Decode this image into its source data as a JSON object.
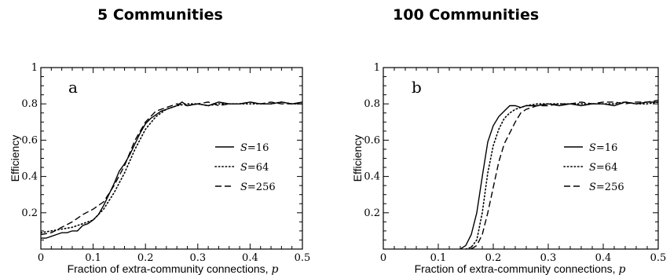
{
  "titles": {
    "left": "5 Communities",
    "right": "100 Communities"
  },
  "chart_data": [
    {
      "type": "line",
      "panel_label": "a",
      "xlabel": "Fraction of extra-community connections, ",
      "xlabel_var": "p",
      "ylabel": "Efficiency",
      "xlim": [
        0,
        0.5
      ],
      "ylim": [
        0,
        1
      ],
      "xticks": [
        0,
        0.1,
        0.2,
        0.3,
        0.4,
        0.5
      ],
      "xtick_labels": [
        "0",
        "0.1",
        "0.2",
        "0.3",
        "0.4",
        "0.5"
      ],
      "yticks": [
        0.2,
        0.4,
        0.6,
        0.8,
        1
      ],
      "ytick_labels": [
        "0.2",
        "0.4",
        "0.6",
        "0.8",
        "1"
      ],
      "legend_position": "middle-right",
      "series": [
        {
          "name": "S=16",
          "name_var": "S",
          "name_value": "=16",
          "style": "solid",
          "x": [
            0,
            0.01,
            0.02,
            0.03,
            0.04,
            0.05,
            0.06,
            0.07,
            0.08,
            0.09,
            0.1,
            0.11,
            0.12,
            0.13,
            0.14,
            0.15,
            0.16,
            0.17,
            0.18,
            0.19,
            0.2,
            0.21,
            0.22,
            0.23,
            0.24,
            0.25,
            0.26,
            0.27,
            0.28,
            0.3,
            0.32,
            0.34,
            0.36,
            0.38,
            0.4,
            0.42,
            0.44,
            0.46,
            0.48,
            0.5
          ],
          "y": [
            0.06,
            0.06,
            0.07,
            0.08,
            0.09,
            0.09,
            0.1,
            0.1,
            0.13,
            0.14,
            0.16,
            0.19,
            0.24,
            0.3,
            0.36,
            0.43,
            0.47,
            0.52,
            0.58,
            0.64,
            0.69,
            0.72,
            0.74,
            0.76,
            0.77,
            0.78,
            0.79,
            0.81,
            0.79,
            0.8,
            0.79,
            0.81,
            0.8,
            0.8,
            0.81,
            0.8,
            0.8,
            0.81,
            0.8,
            0.81
          ]
        },
        {
          "name": "S=64",
          "name_var": "S",
          "name_value": "=64",
          "style": "dotted",
          "x": [
            0,
            0.02,
            0.04,
            0.06,
            0.08,
            0.1,
            0.12,
            0.14,
            0.16,
            0.18,
            0.2,
            0.22,
            0.24,
            0.26,
            0.28,
            0.3,
            0.32,
            0.34,
            0.36,
            0.38,
            0.4,
            0.42,
            0.44,
            0.46,
            0.48,
            0.5
          ],
          "y": [
            0.09,
            0.1,
            0.11,
            0.12,
            0.14,
            0.16,
            0.22,
            0.31,
            0.42,
            0.55,
            0.66,
            0.73,
            0.77,
            0.79,
            0.8,
            0.8,
            0.79,
            0.8,
            0.8,
            0.8,
            0.8,
            0.8,
            0.8,
            0.81,
            0.8,
            0.8
          ]
        },
        {
          "name": "S=256",
          "name_var": "S",
          "name_value": "=256",
          "style": "dashed",
          "x": [
            0,
            0.02,
            0.04,
            0.06,
            0.08,
            0.1,
            0.12,
            0.14,
            0.16,
            0.18,
            0.2,
            0.22,
            0.24,
            0.26,
            0.28,
            0.3,
            0.32,
            0.34,
            0.36,
            0.38,
            0.4,
            0.42,
            0.44,
            0.46,
            0.48,
            0.5
          ],
          "y": [
            0.08,
            0.09,
            0.12,
            0.15,
            0.19,
            0.22,
            0.26,
            0.35,
            0.46,
            0.6,
            0.7,
            0.76,
            0.78,
            0.8,
            0.79,
            0.8,
            0.81,
            0.79,
            0.8,
            0.8,
            0.81,
            0.8,
            0.81,
            0.8,
            0.8,
            0.8
          ]
        }
      ]
    },
    {
      "type": "line",
      "panel_label": "b",
      "xlabel": "Fraction of extra-community connections, ",
      "xlabel_var": "p",
      "ylabel": "Efficiency",
      "xlim": [
        0,
        0.5
      ],
      "ylim": [
        0,
        1
      ],
      "xticks": [
        0,
        0.1,
        0.2,
        0.3,
        0.4,
        0.5
      ],
      "xtick_labels": [
        "0",
        "0.1",
        "0.2",
        "0.3",
        "0.4",
        "0.5"
      ],
      "yticks": [
        0.2,
        0.4,
        0.6,
        0.8,
        1
      ],
      "ytick_labels": [
        "0.2",
        "0.4",
        "0.6",
        "0.8",
        "1"
      ],
      "legend_position": "middle-right",
      "series": [
        {
          "name": "S=16",
          "name_var": "S",
          "name_value": "=16",
          "style": "solid",
          "x": [
            0.14,
            0.15,
            0.16,
            0.17,
            0.18,
            0.19,
            0.2,
            0.21,
            0.22,
            0.23,
            0.24,
            0.25,
            0.26,
            0.28,
            0.3,
            0.32,
            0.34,
            0.36,
            0.38,
            0.4,
            0.42,
            0.44,
            0.46,
            0.48,
            0.5
          ],
          "y": [
            0,
            0.02,
            0.08,
            0.2,
            0.4,
            0.59,
            0.68,
            0.73,
            0.76,
            0.79,
            0.79,
            0.78,
            0.79,
            0.79,
            0.8,
            0.79,
            0.8,
            0.79,
            0.8,
            0.8,
            0.79,
            0.81,
            0.8,
            0.81,
            0.81
          ]
        },
        {
          "name": "S=64",
          "name_var": "S",
          "name_value": "=64",
          "style": "dotted",
          "x": [
            0.15,
            0.16,
            0.17,
            0.18,
            0.19,
            0.2,
            0.21,
            0.22,
            0.23,
            0.24,
            0.25,
            0.26,
            0.28,
            0.3,
            0.32,
            0.34,
            0.36,
            0.38,
            0.4,
            0.42,
            0.44,
            0.46,
            0.48,
            0.5
          ],
          "y": [
            0,
            0.01,
            0.05,
            0.2,
            0.42,
            0.57,
            0.66,
            0.72,
            0.75,
            0.77,
            0.78,
            0.79,
            0.8,
            0.8,
            0.8,
            0.8,
            0.8,
            0.8,
            0.8,
            0.8,
            0.81,
            0.8,
            0.8,
            0.81
          ]
        },
        {
          "name": "S=256",
          "name_var": "S",
          "name_value": "=256",
          "style": "dashed",
          "x": [
            0.16,
            0.17,
            0.18,
            0.19,
            0.2,
            0.21,
            0.22,
            0.23,
            0.24,
            0.25,
            0.26,
            0.27,
            0.28,
            0.3,
            0.32,
            0.34,
            0.36,
            0.38,
            0.4,
            0.42,
            0.44,
            0.46,
            0.48,
            0.5
          ],
          "y": [
            0,
            0.02,
            0.08,
            0.2,
            0.34,
            0.48,
            0.58,
            0.64,
            0.7,
            0.75,
            0.77,
            0.78,
            0.79,
            0.79,
            0.8,
            0.8,
            0.81,
            0.8,
            0.81,
            0.81,
            0.8,
            0.81,
            0.81,
            0.82
          ]
        }
      ]
    }
  ]
}
